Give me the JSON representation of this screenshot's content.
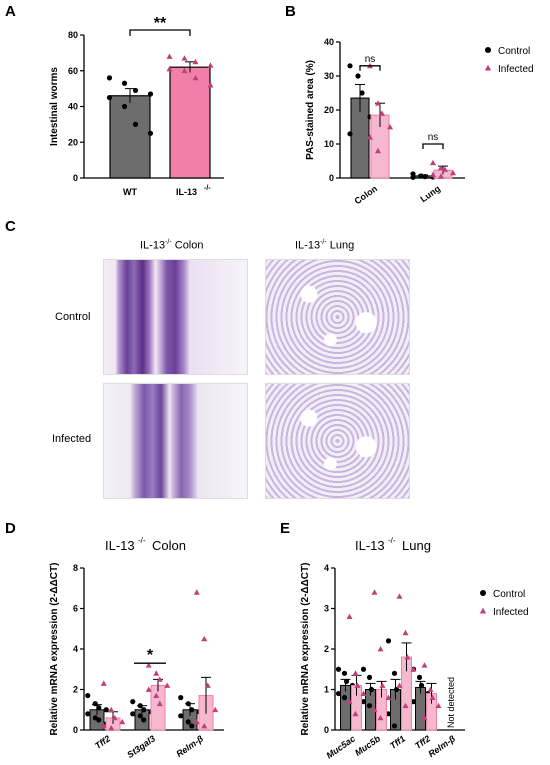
{
  "panels": {
    "A": "A",
    "B": "B",
    "C": "C",
    "D": "D",
    "E": "E"
  },
  "chart_data": [
    {
      "panel": "A",
      "type": "bar",
      "title": "",
      "ylabel": "Intestinal worms",
      "xlabel": "",
      "ylim": [
        0,
        80
      ],
      "yticks": [
        "0",
        "20",
        "40",
        "60",
        "80"
      ],
      "categories": [
        "WT",
        "IL-13 -/-"
      ],
      "values": [
        46,
        62
      ],
      "errors": [
        4,
        3
      ],
      "bar_colors": [
        "#6d6d6d",
        "#f080a8"
      ],
      "points": [
        [
          56,
          53,
          49,
          47,
          45,
          40,
          30,
          25
        ],
        [
          68,
          67,
          65,
          63,
          61,
          60,
          56,
          52
        ]
      ],
      "significance": "**"
    },
    {
      "panel": "B",
      "type": "bar",
      "title": "",
      "ylabel": "PAS-stained area (%)",
      "xlabel": "",
      "ylim": [
        0,
        40
      ],
      "yticks": [
        "0",
        "10",
        "20",
        "30",
        "40"
      ],
      "categories": [
        "Colon",
        "Lung"
      ],
      "series": [
        {
          "name": "Control",
          "values": [
            23.5,
            0.6
          ],
          "errors": [
            4,
            0.3
          ],
          "points": [
            [
              33,
              30,
              25,
              18,
              13
            ],
            [
              1.2,
              0.6,
              0.4,
              0.3,
              0.2
            ]
          ]
        },
        {
          "name": "Infected",
          "values": [
            18.5,
            2.3
          ],
          "errors": [
            3.5,
            1.2
          ],
          "points": [
            [
              33,
              22,
              19,
              15,
              12,
              8
            ],
            [
              4.5,
              3,
              2.5,
              1.5,
              1,
              0.5
            ]
          ]
        }
      ],
      "significance": [
        "ns",
        "ns"
      ],
      "legend": [
        "Control",
        "Infected"
      ],
      "legend_position": "right"
    },
    {
      "panel": "D",
      "type": "bar",
      "title": "IL-13-/- Colon",
      "ylabel": "Relative mRNA expression (2-ΔΔCT)",
      "xlabel": "",
      "ylim": [
        0,
        8
      ],
      "yticks": [
        "0",
        "2",
        "4",
        "6",
        "8"
      ],
      "categories": [
        "Tff2",
        "St3gal3",
        "Relm-β"
      ],
      "series": [
        {
          "name": "Control",
          "values": [
            1.0,
            1.0,
            1.0
          ],
          "errors": [
            0.25,
            0.2,
            0.3
          ],
          "points": [
            [
              1.7,
              1.3,
              1.1,
              1.0,
              0.8,
              0.6,
              0.5,
              0.3
            ],
            [
              1.4,
              1.2,
              1.0,
              0.9,
              0.8,
              0.7,
              0.5
            ],
            [
              1.6,
              1.3,
              1.0,
              0.9,
              0.7,
              0.4,
              0.2
            ]
          ]
        },
        {
          "name": "Infected",
          "values": [
            0.6,
            2.2,
            1.7
          ],
          "errors": [
            0.3,
            0.3,
            0.9
          ],
          "points": [
            [
              2.3,
              1.0,
              0.6,
              0.4,
              0.2,
              0.1
            ],
            [
              3.2,
              2.8,
              2.5,
              2.2,
              2.0,
              1.7,
              1.3
            ],
            [
              6.8,
              4.5,
              2.2,
              1.0,
              0.4,
              0.2
            ]
          ]
        }
      ],
      "significance": "*"
    },
    {
      "panel": "E",
      "type": "bar",
      "title": "IL-13-/- Lung",
      "ylabel": "Relative mRNA expression (2-ΔΔCT)",
      "xlabel": "",
      "ylim": [
        0,
        4
      ],
      "yticks": [
        "0",
        "1",
        "2",
        "3",
        "4"
      ],
      "categories": [
        "Muc5ac",
        "Muc5b",
        "Tff1",
        "Tff2",
        "Relm-β"
      ],
      "series": [
        {
          "name": "Control",
          "values": [
            1.1,
            1.0,
            1.0,
            1.05,
            0
          ],
          "errors": [
            0.15,
            0.15,
            0.25,
            0.15,
            0
          ],
          "points": [
            [
              1.5,
              1.4,
              1.2,
              1.1,
              0.9,
              0.8
            ],
            [
              1.5,
              1.3,
              1.0,
              0.9,
              0.7,
              0.6
            ],
            [
              2.2,
              1.4,
              1.0,
              0.7,
              0.4,
              0.1
            ],
            [
              1.5,
              1.3,
              1.1,
              0.9,
              0.7
            ]
          ]
        },
        {
          "name": "Infected",
          "values": [
            1.1,
            1.0,
            1.8,
            0.9,
            0
          ],
          "errors": [
            0.25,
            0.2,
            0.35,
            0.25,
            0
          ],
          "points": [
            [
              2.8,
              1.4,
              1.1,
              0.9,
              0.7,
              0.4
            ],
            [
              3.4,
              2.0,
              1.1,
              0.8,
              0.5,
              0.3
            ],
            [
              3.3,
              2.4,
              1.8,
              1.5,
              1.1,
              0.6
            ],
            [
              1.6,
              1.0,
              0.8,
              0.6,
              0.3
            ]
          ]
        }
      ],
      "annotation": "Not detected",
      "legend": [
        "Control",
        "Infected"
      ],
      "legend_position": "right"
    }
  ],
  "micrographs": {
    "col_titles": [
      "IL-13",
      "-/-",
      " Colon",
      "IL-13",
      "-/-",
      " Lung"
    ],
    "row_labels": [
      "Control",
      "Infected"
    ]
  },
  "titles": {
    "A_cat2_main": "IL-13",
    "A_cat2_sup": " -/-",
    "D_main": "IL-13",
    "D_sup": "-/-",
    "D_rest": " Colon",
    "E_main": "IL-13",
    "E_sup": "-/-",
    "E_rest": " Lung"
  },
  "colors": {
    "control_bar": "#6d6d6d",
    "infected_bar": "#f080a8",
    "infected_light": "#f6b8cf",
    "infected_point": "#c0407a"
  }
}
